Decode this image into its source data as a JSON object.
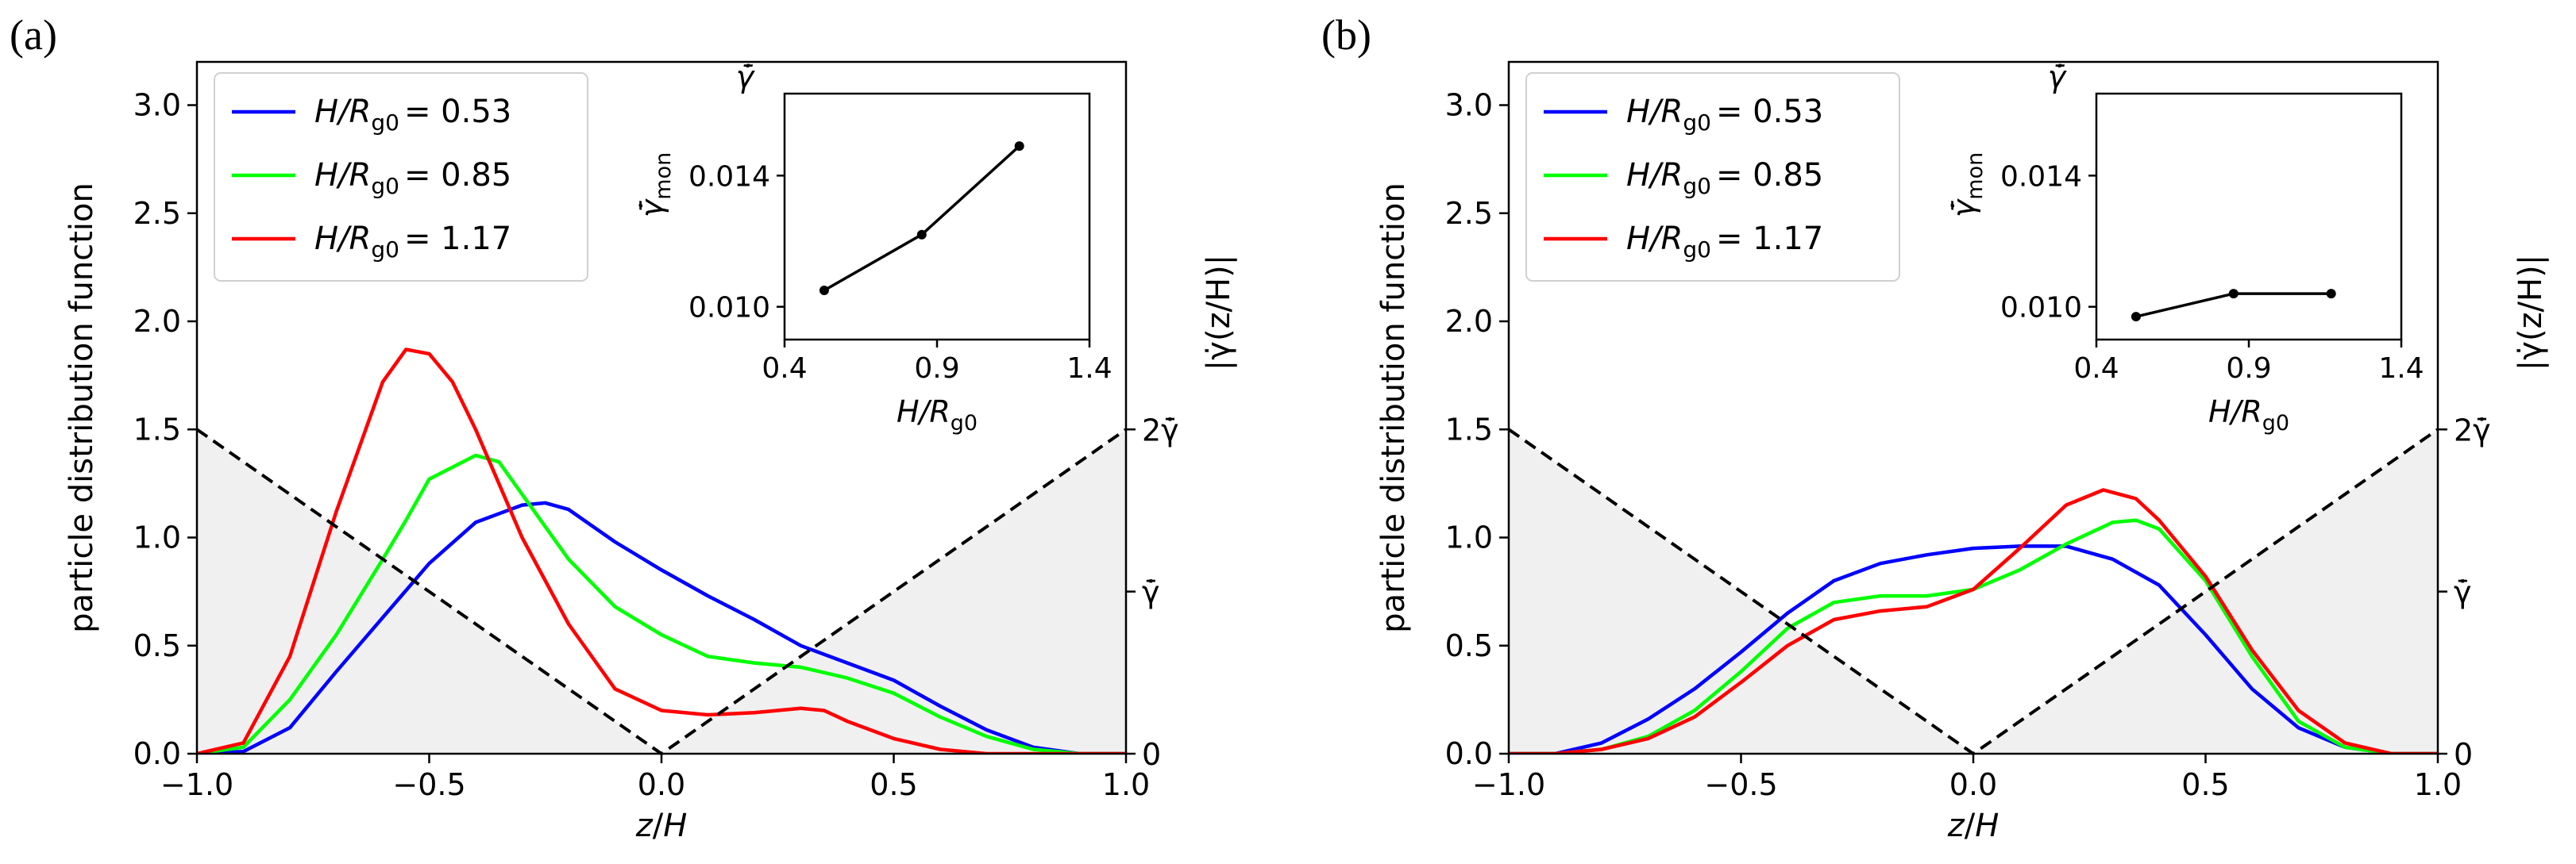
{
  "figure": {
    "panel_labels": [
      "(a)",
      "(b)"
    ]
  },
  "colors": {
    "blue": "#0000ff",
    "green": "#00ff00",
    "red": "#ff0000",
    "shade": "#f0f0f0",
    "axes": "#000000"
  },
  "chart_data": [
    {
      "type": "line",
      "panel": "(a)",
      "xlabel": "z/H",
      "ylabel": "particle distribution function",
      "ylabel_right": "|γ̇(z/H)|",
      "xlim": [
        -1.0,
        1.0
      ],
      "ylim": [
        0.0,
        3.2
      ],
      "xticks": [
        -1.0,
        -0.5,
        0.0,
        0.5,
        1.0
      ],
      "yticks": [
        0.0,
        0.5,
        1.0,
        1.5,
        2.0,
        2.5,
        3.0
      ],
      "right_ticks": [
        {
          "y": 0.0,
          "label": "0"
        },
        {
          "y": 0.75,
          "label": "γ̄̇"
        },
        {
          "y": 1.5,
          "label": "2γ̄̇"
        }
      ],
      "legend": {
        "placement": "top-left",
        "entries": [
          {
            "label": "H/R",
            "sub": "g0",
            "value": "= 0.53",
            "color": "#0000ff"
          },
          {
            "label": "H/R",
            "sub": "g0",
            "value": "= 0.85",
            "color": "#00ff00"
          },
          {
            "label": "H/R",
            "sub": "g0",
            "value": "= 1.17",
            "color": "#ff0000"
          }
        ]
      },
      "shear_profile": {
        "x": [
          -1.0,
          0.0,
          1.0
        ],
        "y": [
          1.5,
          0.0,
          1.5
        ],
        "style": "dashed",
        "fill": "below"
      },
      "series": [
        {
          "name": "H/Rg0 = 0.53",
          "color": "#0000ff",
          "x": [
            -1.0,
            -0.9,
            -0.8,
            -0.7,
            -0.6,
            -0.5,
            -0.4,
            -0.3,
            -0.25,
            -0.2,
            -0.1,
            0.0,
            0.1,
            0.2,
            0.3,
            0.4,
            0.5,
            0.6,
            0.7,
            0.8,
            0.9,
            1.0
          ],
          "y": [
            0.0,
            0.01,
            0.12,
            0.38,
            0.63,
            0.88,
            1.07,
            1.15,
            1.16,
            1.13,
            0.98,
            0.85,
            0.73,
            0.62,
            0.5,
            0.42,
            0.34,
            0.22,
            0.11,
            0.03,
            0.0,
            0.0
          ]
        },
        {
          "name": "H/Rg0 = 0.85",
          "color": "#00ff00",
          "x": [
            -1.0,
            -0.9,
            -0.8,
            -0.7,
            -0.6,
            -0.55,
            -0.5,
            -0.4,
            -0.35,
            -0.3,
            -0.2,
            -0.1,
            0.0,
            0.1,
            0.2,
            0.3,
            0.4,
            0.5,
            0.6,
            0.7,
            0.8,
            0.9,
            1.0
          ],
          "y": [
            0.0,
            0.03,
            0.25,
            0.55,
            0.9,
            1.08,
            1.27,
            1.38,
            1.35,
            1.2,
            0.9,
            0.68,
            0.55,
            0.45,
            0.42,
            0.4,
            0.35,
            0.28,
            0.17,
            0.08,
            0.02,
            0.0,
            0.0
          ]
        },
        {
          "name": "H/Rg0 = 1.17",
          "color": "#ff0000",
          "x": [
            -1.0,
            -0.9,
            -0.8,
            -0.7,
            -0.6,
            -0.55,
            -0.5,
            -0.45,
            -0.4,
            -0.3,
            -0.2,
            -0.1,
            0.0,
            0.1,
            0.2,
            0.3,
            0.35,
            0.4,
            0.5,
            0.6,
            0.7,
            0.8,
            1.0
          ],
          "y": [
            0.0,
            0.05,
            0.45,
            1.12,
            1.72,
            1.87,
            1.85,
            1.72,
            1.5,
            1.0,
            0.6,
            0.3,
            0.2,
            0.18,
            0.19,
            0.21,
            0.2,
            0.15,
            0.07,
            0.02,
            0.0,
            0.0,
            0.0
          ]
        }
      ],
      "inset": {
        "type": "line",
        "xlabel": "H/R",
        "xlabel_sub": "g0",
        "ylabel": "γ̄̇",
        "ylabel_sub": "mon",
        "top_label": "γ̄̇",
        "xlim": [
          0.4,
          1.4
        ],
        "ylim": [
          0.009,
          0.0165
        ],
        "xticks": [
          0.4,
          0.9,
          1.4
        ],
        "yticks": [
          0.01,
          0.014
        ],
        "x": [
          0.53,
          0.85,
          1.17
        ],
        "y": [
          0.0105,
          0.0122,
          0.0149
        ]
      }
    },
    {
      "type": "line",
      "panel": "(b)",
      "xlabel": "z/H",
      "ylabel": "particle distribution function",
      "ylabel_right": "|γ̇(z/H)|",
      "xlim": [
        -1.0,
        1.0
      ],
      "ylim": [
        0.0,
        3.2
      ],
      "xticks": [
        -1.0,
        -0.5,
        0.0,
        0.5,
        1.0
      ],
      "yticks": [
        0.0,
        0.5,
        1.0,
        1.5,
        2.0,
        2.5,
        3.0
      ],
      "right_ticks": [
        {
          "y": 0.0,
          "label": "0"
        },
        {
          "y": 0.75,
          "label": "γ̄̇"
        },
        {
          "y": 1.5,
          "label": "2γ̄̇"
        }
      ],
      "legend": {
        "placement": "top-left",
        "entries": [
          {
            "label": "H/R",
            "sub": "g0",
            "value": "= 0.53",
            "color": "#0000ff"
          },
          {
            "label": "H/R",
            "sub": "g0",
            "value": "= 0.85",
            "color": "#00ff00"
          },
          {
            "label": "H/R",
            "sub": "g0",
            "value": "= 1.17",
            "color": "#ff0000"
          }
        ]
      },
      "shear_profile": {
        "x": [
          -1.0,
          0.0,
          1.0
        ],
        "y": [
          1.5,
          0.0,
          1.5
        ],
        "style": "dashed",
        "fill": "below"
      },
      "series": [
        {
          "name": "H/Rg0 = 0.53",
          "color": "#0000ff",
          "x": [
            -1.0,
            -0.9,
            -0.8,
            -0.7,
            -0.6,
            -0.5,
            -0.4,
            -0.3,
            -0.2,
            -0.1,
            0.0,
            0.1,
            0.2,
            0.3,
            0.4,
            0.5,
            0.6,
            0.7,
            0.8,
            0.9,
            1.0
          ],
          "y": [
            0.0,
            0.0,
            0.05,
            0.16,
            0.3,
            0.47,
            0.65,
            0.8,
            0.88,
            0.92,
            0.95,
            0.96,
            0.96,
            0.9,
            0.78,
            0.55,
            0.3,
            0.12,
            0.03,
            0.0,
            0.0
          ]
        },
        {
          "name": "H/Rg0 = 0.85",
          "color": "#00ff00",
          "x": [
            -1.0,
            -0.9,
            -0.8,
            -0.7,
            -0.6,
            -0.5,
            -0.4,
            -0.3,
            -0.2,
            -0.1,
            0.0,
            0.1,
            0.2,
            0.3,
            0.35,
            0.4,
            0.5,
            0.6,
            0.7,
            0.8,
            0.9,
            1.0
          ],
          "y": [
            0.0,
            0.0,
            0.02,
            0.08,
            0.2,
            0.38,
            0.58,
            0.7,
            0.73,
            0.73,
            0.76,
            0.85,
            0.97,
            1.07,
            1.08,
            1.04,
            0.8,
            0.45,
            0.15,
            0.03,
            0.0,
            0.0
          ]
        },
        {
          "name": "H/Rg0 = 1.17",
          "color": "#ff0000",
          "x": [
            -1.0,
            -0.9,
            -0.8,
            -0.7,
            -0.6,
            -0.5,
            -0.4,
            -0.3,
            -0.2,
            -0.1,
            0.0,
            0.1,
            0.2,
            0.28,
            0.35,
            0.4,
            0.5,
            0.6,
            0.7,
            0.8,
            0.9,
            1.0
          ],
          "y": [
            0.0,
            0.0,
            0.02,
            0.07,
            0.17,
            0.33,
            0.5,
            0.62,
            0.66,
            0.68,
            0.76,
            0.95,
            1.15,
            1.22,
            1.18,
            1.08,
            0.82,
            0.48,
            0.2,
            0.05,
            0.0,
            0.0
          ]
        }
      ],
      "inset": {
        "type": "line",
        "xlabel": "H/R",
        "xlabel_sub": "g0",
        "ylabel": "γ̄̇",
        "ylabel_sub": "mon",
        "top_label": "γ̄̇",
        "xlim": [
          0.4,
          1.4
        ],
        "ylim": [
          0.009,
          0.0165
        ],
        "xticks": [
          0.4,
          0.9,
          1.4
        ],
        "yticks": [
          0.01,
          0.014
        ],
        "x": [
          0.53,
          0.85,
          1.17
        ],
        "y": [
          0.0097,
          0.0104,
          0.0104
        ]
      }
    }
  ]
}
